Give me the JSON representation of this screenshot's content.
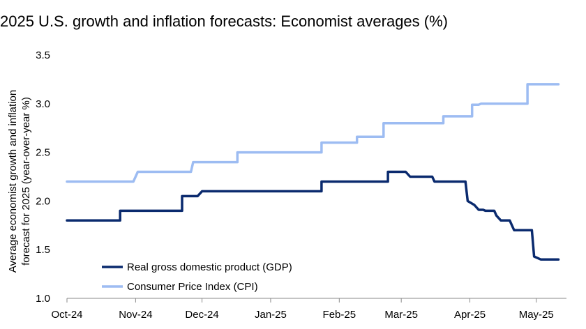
{
  "chart_data": {
    "type": "line",
    "title": "2025 U.S. growth and inflation forecasts: Economist averages (%)",
    "xlabel": "",
    "ylabel": "Average economist growth and inflation forecast for 2025 (year-over-year %)",
    "ylabel_lines": [
      "Average economist growth and inflation",
      "forecast for 2025 (year-over-year %)"
    ],
    "ylim": [
      1.0,
      3.5
    ],
    "yticks": [
      1.0,
      1.5,
      2.0,
      2.5,
      3.0,
      3.5
    ],
    "ytick_labels": [
      "1.0",
      "1.5",
      "2.0",
      "2.5",
      "3.0",
      "3.5"
    ],
    "x_range_days": [
      0,
      225
    ],
    "x_unit": "days since 2024-10-01",
    "xticks": [
      0,
      31,
      61,
      92,
      123,
      151,
      182,
      212
    ],
    "xtick_labels": [
      "Oct-24",
      "Nov-24",
      "Dec-24",
      "Jan-25",
      "Feb-25",
      "Mar-25",
      "Apr-25",
      "May-25"
    ],
    "legend_position": "lower-left",
    "series": [
      {
        "name": "Real gross domestic product (GDP)",
        "color": "#0a2a6e",
        "step": true,
        "points": [
          [
            0,
            1.8
          ],
          [
            24,
            1.8
          ],
          [
            24,
            1.9
          ],
          [
            52,
            1.9
          ],
          [
            52,
            2.05
          ],
          [
            59,
            2.05
          ],
          [
            61,
            2.1
          ],
          [
            115,
            2.1
          ],
          [
            115,
            2.2
          ],
          [
            145,
            2.2
          ],
          [
            145,
            2.3
          ],
          [
            153,
            2.3
          ],
          [
            155,
            2.25
          ],
          [
            165,
            2.25
          ],
          [
            166,
            2.2
          ],
          [
            180,
            2.2
          ],
          [
            181,
            2.0
          ],
          [
            184,
            1.96
          ],
          [
            186,
            1.91
          ],
          [
            188,
            1.91
          ],
          [
            189,
            1.9
          ],
          [
            193,
            1.9
          ],
          [
            194,
            1.85
          ],
          [
            196,
            1.8
          ],
          [
            200,
            1.8
          ],
          [
            201,
            1.75
          ],
          [
            202,
            1.7
          ],
          [
            210,
            1.7
          ],
          [
            211,
            1.43
          ],
          [
            214,
            1.4
          ],
          [
            222,
            1.4
          ]
        ]
      },
      {
        "name": "Consumer Price Index (CPI)",
        "color": "#9dbcf2",
        "step": true,
        "points": [
          [
            0,
            2.2
          ],
          [
            30,
            2.2
          ],
          [
            32,
            2.3
          ],
          [
            56,
            2.3
          ],
          [
            57,
            2.4
          ],
          [
            77,
            2.4
          ],
          [
            77,
            2.5
          ],
          [
            115,
            2.5
          ],
          [
            115,
            2.6
          ],
          [
            131,
            2.6
          ],
          [
            131,
            2.66
          ],
          [
            143,
            2.66
          ],
          [
            143,
            2.8
          ],
          [
            170,
            2.8
          ],
          [
            170,
            2.87
          ],
          [
            183,
            2.87
          ],
          [
            183,
            2.99
          ],
          [
            186,
            2.99
          ],
          [
            187,
            3.0
          ],
          [
            208,
            3.0
          ],
          [
            208,
            3.2
          ],
          [
            222,
            3.2
          ]
        ]
      }
    ]
  }
}
